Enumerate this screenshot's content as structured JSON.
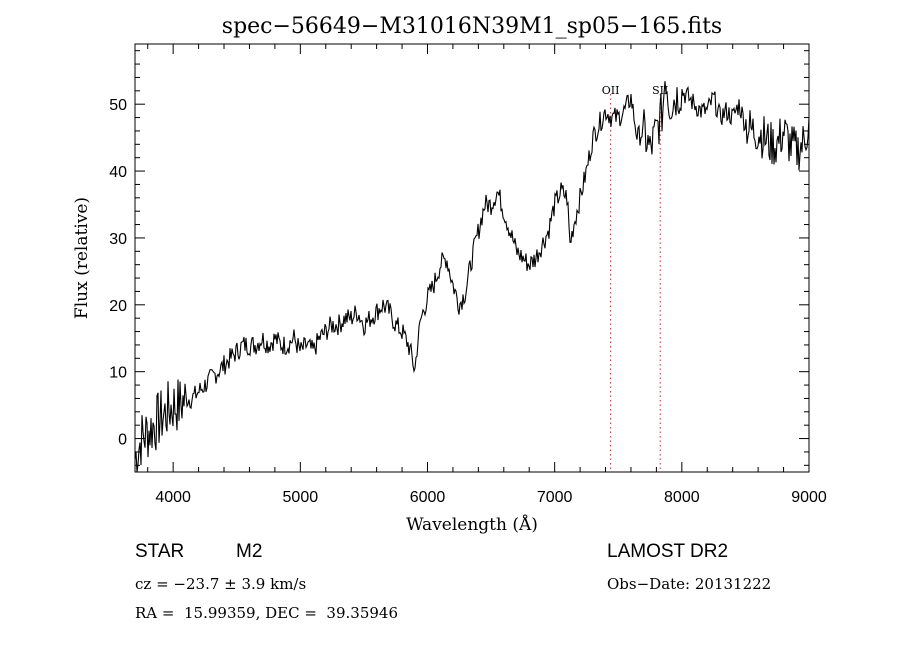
{
  "chart_data": {
    "type": "line",
    "title": "spec−56649−M31016N39M1_sp05−165.fits",
    "xlabel": "Wavelength (Å)",
    "ylabel": "Flux (relative)",
    "xlim": [
      3700,
      9000
    ],
    "ylim": [
      -5,
      59
    ],
    "x_ticks": [
      4000,
      5000,
      6000,
      7000,
      8000,
      9000
    ],
    "y_ticks": [
      0,
      10,
      20,
      30,
      40,
      50
    ],
    "grid": false,
    "line_color": "#000000",
    "marker_color": "#c03030",
    "series": [
      {
        "x": [
          3700,
          3750,
          3800,
          3850,
          3900,
          3950,
          4000,
          4050,
          4100,
          4150,
          4200,
          4250,
          4300,
          4350,
          4400,
          4450,
          4500,
          4550,
          4600,
          4650,
          4700,
          4750,
          4800,
          4850,
          4900,
          4950,
          5000,
          5050,
          5100,
          5150,
          5200,
          5250,
          5300,
          5350,
          5400,
          5450,
          5500,
          5550,
          5600,
          5650,
          5700,
          5750,
          5800,
          5850,
          5880,
          5900,
          5920,
          5950,
          6000,
          6050,
          6100,
          6150,
          6200,
          6250,
          6300,
          6350,
          6400,
          6450,
          6500,
          6550,
          6600,
          6650,
          6700,
          6750,
          6800,
          6850,
          6900,
          6950,
          7000,
          7050,
          7100,
          7120,
          7150,
          7200,
          7250,
          7300,
          7350,
          7400,
          7450,
          7500,
          7550,
          7600,
          7650,
          7700,
          7750,
          7800,
          7850,
          7870,
          7900,
          7950,
          8000,
          8050,
          8100,
          8150,
          8200,
          8250,
          8300,
          8350,
          8400,
          8450,
          8500,
          8550,
          8600,
          8650,
          8700,
          8750,
          8800,
          8850,
          8900,
          8950,
          9000
        ],
        "y": [
          -3,
          0,
          1,
          2,
          3,
          4,
          5,
          5,
          6,
          6,
          7,
          8,
          9,
          10,
          11,
          12,
          13,
          14,
          14,
          14,
          15,
          14,
          15,
          14,
          14,
          15,
          13,
          14,
          13,
          15,
          16,
          17,
          17,
          18,
          18,
          19,
          17,
          18,
          19,
          20,
          19,
          17,
          16,
          14,
          12,
          10,
          14,
          18,
          21,
          23,
          26,
          27,
          23,
          20,
          22,
          27,
          31,
          35,
          35,
          37,
          34,
          31,
          28,
          27,
          26,
          27,
          29,
          31,
          35,
          37,
          36,
          29,
          32,
          36,
          40,
          45,
          47,
          49,
          48,
          48,
          49,
          51,
          45,
          46,
          43,
          46,
          49,
          55,
          50,
          51,
          52,
          51,
          50,
          49,
          49,
          51,
          48,
          49,
          48,
          50,
          47,
          46,
          46,
          45,
          44,
          44,
          46,
          44,
          43,
          44,
          47
        ]
      }
    ],
    "markers": [
      {
        "label": "OII",
        "x": 7440
      },
      {
        "label": "SII",
        "x": 7830
      }
    ]
  },
  "info": {
    "object": "STAR",
    "subclass": "M2",
    "survey": "LAMOST DR2",
    "velocity": "cz = −23.7 ± 3.9 km/s",
    "obs_date": "Obs−Date: 20131222",
    "coords": "RA =  15.99359, DEC =  39.35946"
  }
}
